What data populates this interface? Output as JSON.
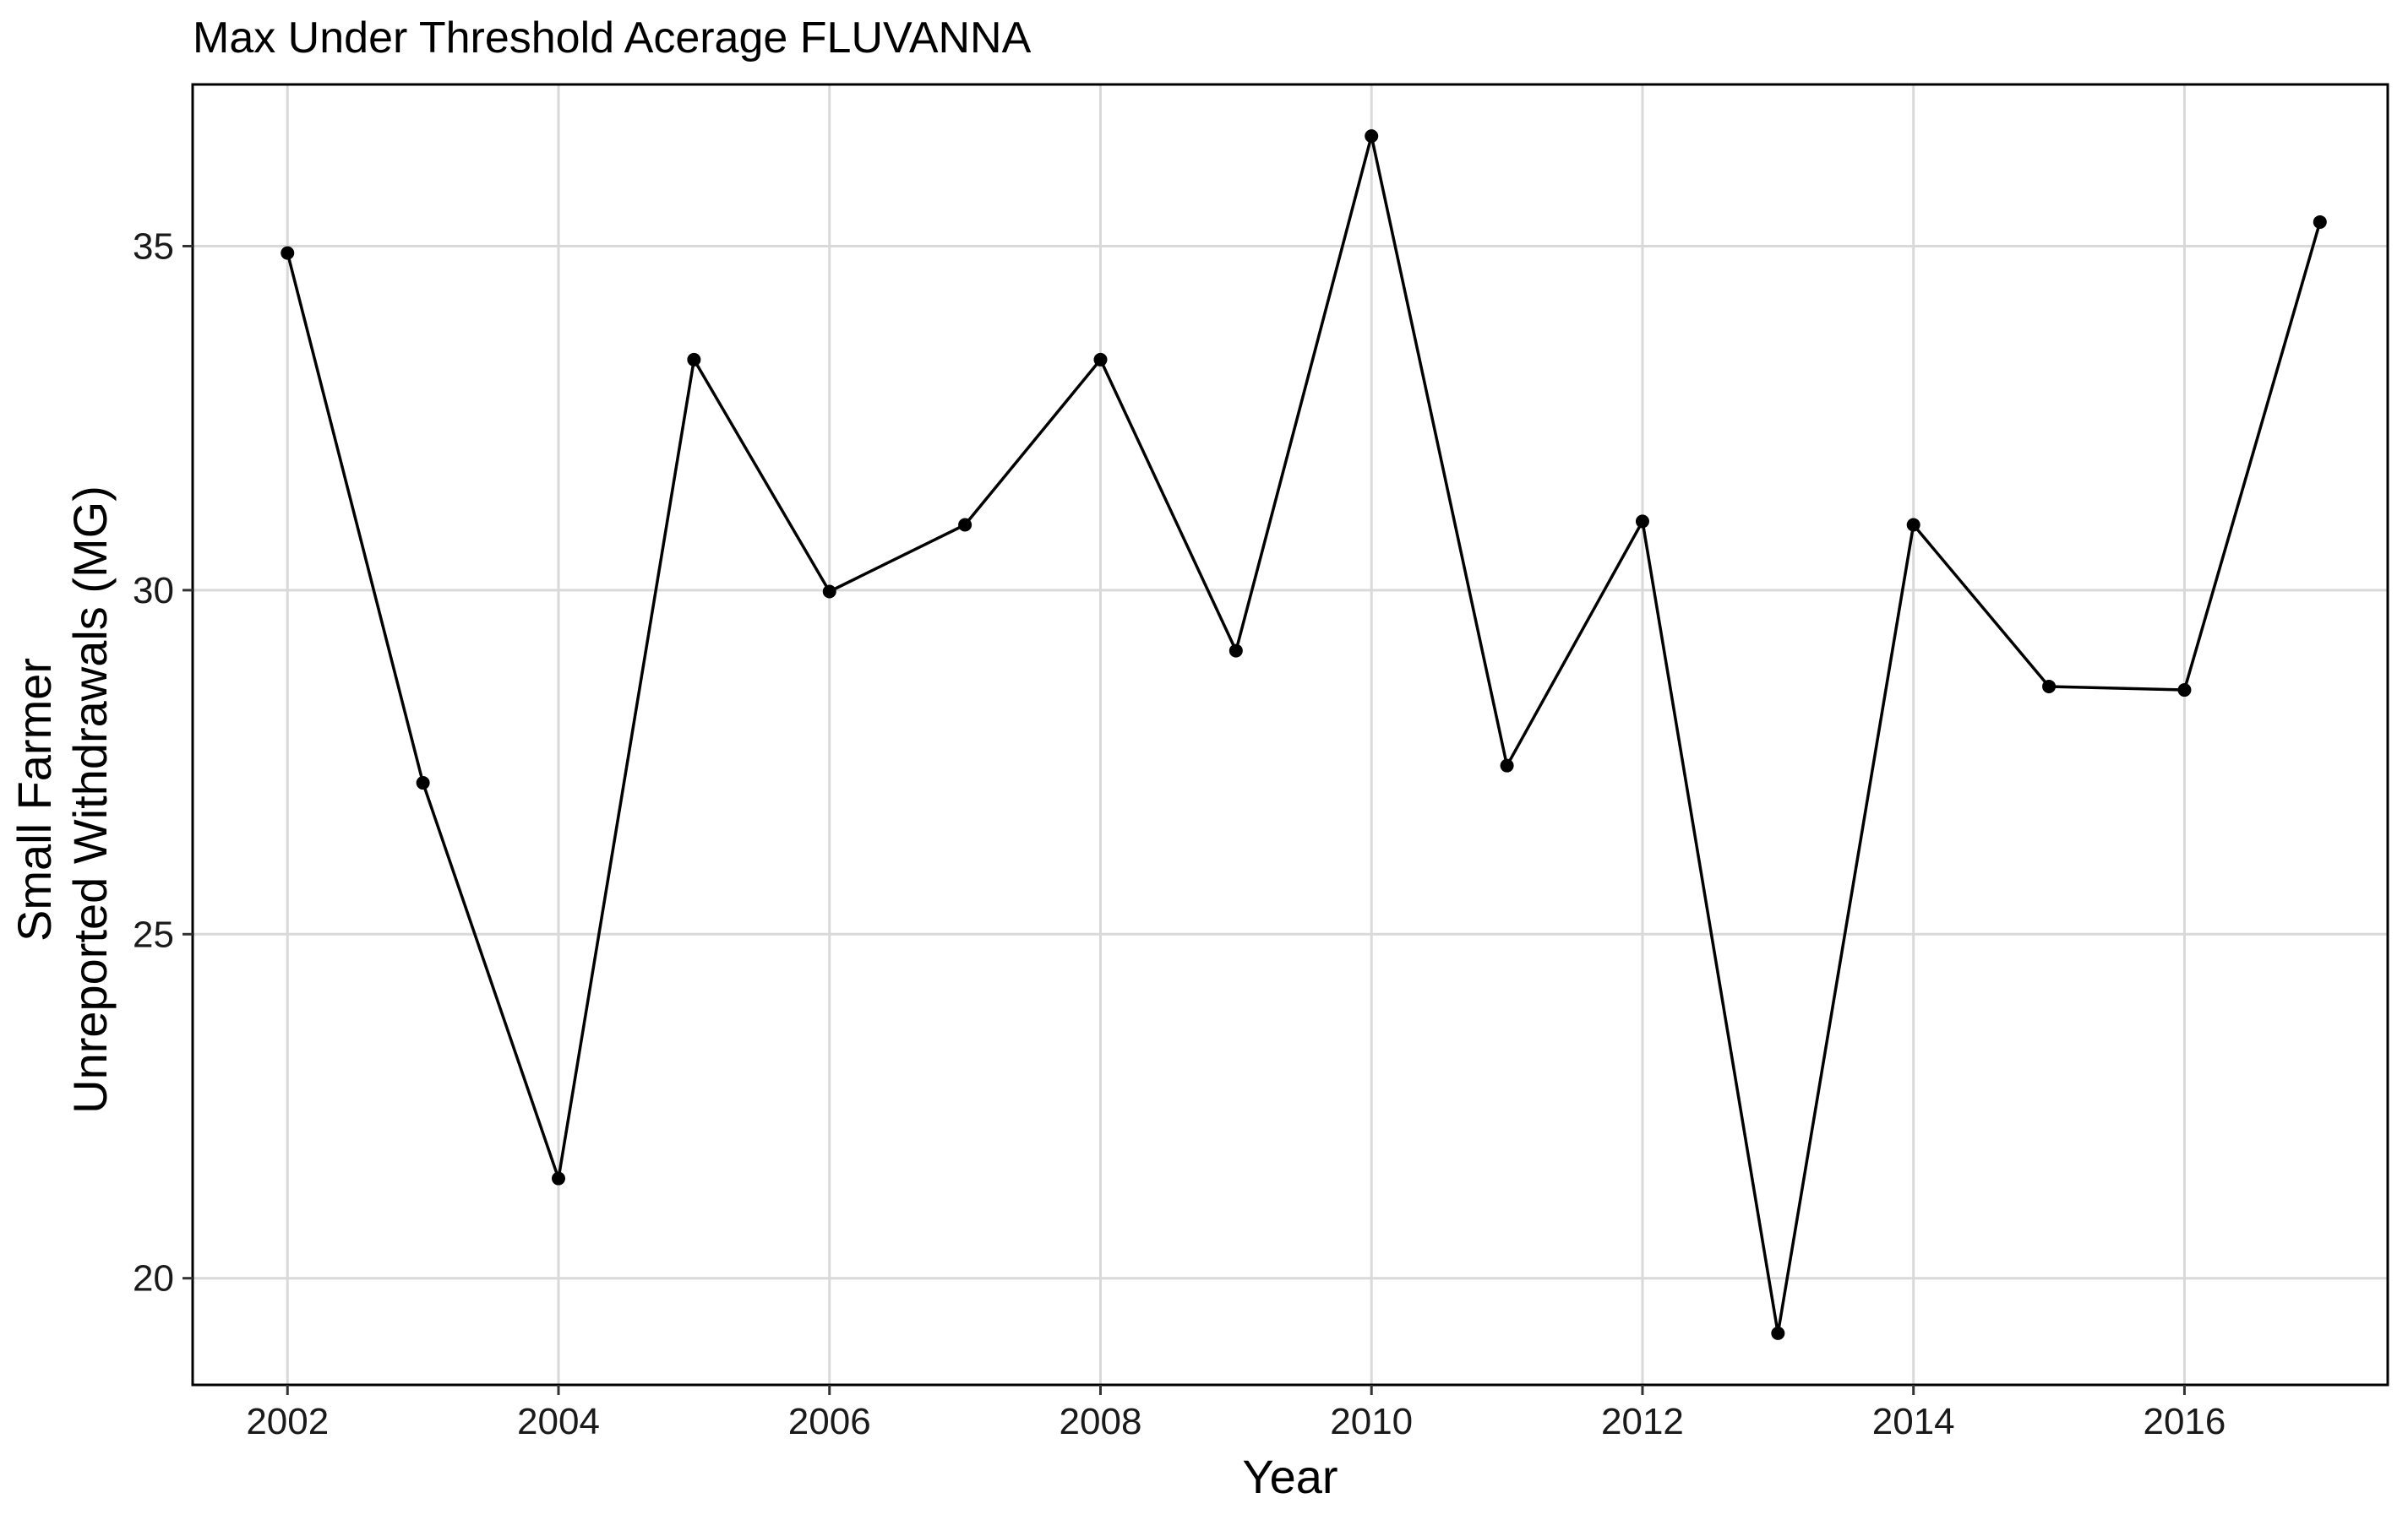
{
  "chart_data": {
    "type": "line",
    "title": "Max Under Threshold Acerage FLUVANNA",
    "xlabel": "Year",
    "ylabel_lines": [
      "Small Farmer",
      "Unreported Withdrawals (MG)"
    ],
    "x": [
      2002,
      2003,
      2004,
      2005,
      2006,
      2007,
      2008,
      2009,
      2010,
      2011,
      2012,
      2013,
      2014,
      2015,
      2016,
      2017
    ],
    "values": [
      34.9,
      27.2,
      21.45,
      33.35,
      29.98,
      30.95,
      33.35,
      29.12,
      36.6,
      27.45,
      31.0,
      19.2,
      30.95,
      28.6,
      28.55,
      35.35
    ],
    "xlim": [
      2001.3,
      2017.5
    ],
    "ylim": [
      18.45,
      37.35
    ],
    "x_ticks": [
      2002,
      2004,
      2006,
      2008,
      2010,
      2012,
      2014,
      2016
    ],
    "y_ticks": [
      20,
      25,
      30,
      35
    ],
    "grid": true,
    "legend": "none",
    "colors": {
      "line": "#000000",
      "point": "#000000",
      "grid": "#d9d9d9",
      "panel_border": "#000000"
    }
  }
}
